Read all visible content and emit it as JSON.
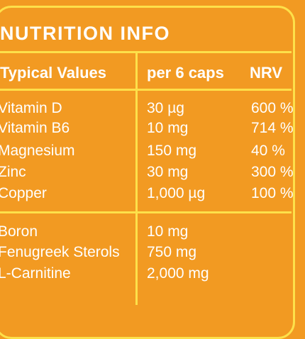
{
  "title": "NUTRITION INFO",
  "headers": {
    "name": "Typical Values",
    "amount": "per 6 caps",
    "nrv": "NRV"
  },
  "rows": [
    {
      "name": "Vitamin D",
      "amount": "30 µg",
      "nrv": "600 %"
    },
    {
      "name": "Vitamin B6",
      "amount": "10 mg",
      "nrv": "714 %"
    },
    {
      "name": "Magnesium",
      "amount": "150 mg",
      "nrv": "40 %"
    },
    {
      "name": "Zinc",
      "amount": "30 mg",
      "nrv": "300 %"
    },
    {
      "name": "Copper",
      "amount": "1,000 µg",
      "nrv": "100 %"
    },
    {
      "name": "Boron",
      "amount": "10 mg",
      "nrv": ""
    },
    {
      "name": "Fenugreek Sterols",
      "amount": "750 mg",
      "nrv": ""
    },
    {
      "name": "L-Carnitine",
      "amount": "2,000 mg",
      "nrv": ""
    }
  ],
  "colors": {
    "background": "#f29a22",
    "border": "#fde04a",
    "text": "#ffffff"
  }
}
